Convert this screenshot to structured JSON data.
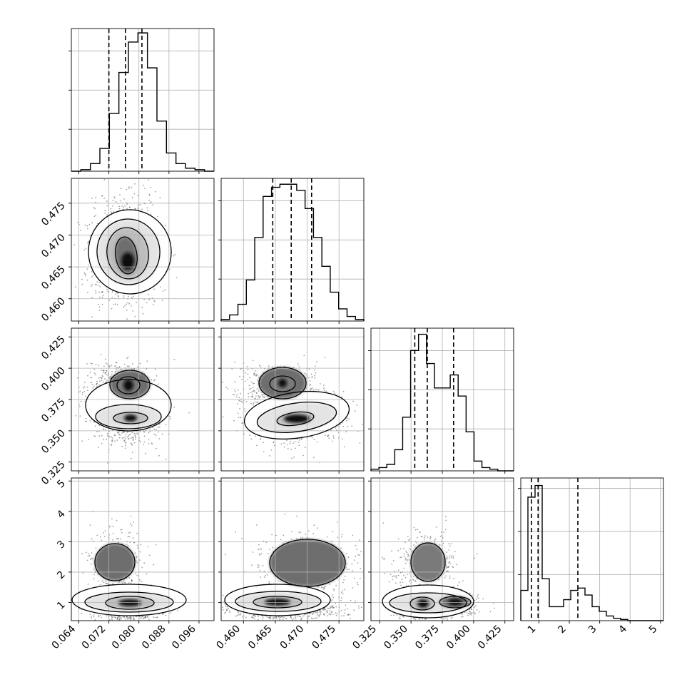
{
  "chart_data": {
    "type": "corner",
    "parameters": [
      {
        "range": [
          0.062,
          0.1
        ],
        "ticks": [
          "0.064",
          "0.072",
          "0.080",
          "0.088",
          "0.096"
        ],
        "tick_values": [
          0.064,
          0.072,
          0.08,
          0.088,
          0.096
        ],
        "quantiles": [
          0.072,
          0.0764,
          0.0808
        ]
      },
      {
        "range": [
          0.4565,
          0.4789
        ],
        "ticks": [
          "0.460",
          "0.465",
          "0.470",
          "0.475"
        ],
        "tick_values": [
          0.46,
          0.465,
          0.47,
          0.475
        ],
        "quantiles": [
          0.4646,
          0.4675,
          0.4707
        ]
      },
      {
        "range": [
          0.318,
          0.432
        ],
        "ticks": [
          "0.325",
          "0.350",
          "0.375",
          "0.400",
          "0.425"
        ],
        "tick_values": [
          0.325,
          0.35,
          0.375,
          0.4,
          0.425
        ],
        "quantiles": [
          0.353,
          0.363,
          0.384
        ]
      },
      {
        "range": [
          0.4,
          5.1
        ],
        "ticks": [
          "1",
          "2",
          "3",
          "4",
          "5"
        ],
        "tick_values": [
          1,
          2,
          3,
          4,
          5
        ],
        "quantiles": [
          0.75,
          0.97,
          2.28
        ]
      }
    ],
    "yticks": [
      null,
      {
        "labels": [
          "0.460",
          "0.465",
          "0.470",
          "0.475"
        ],
        "values": [
          0.46,
          0.465,
          0.47,
          0.475
        ]
      },
      {
        "labels": [
          "0.325",
          "0.350",
          "0.375",
          "0.400",
          "0.425"
        ],
        "values": [
          0.325,
          0.35,
          0.375,
          0.4,
          0.425
        ]
      },
      {
        "labels": [
          "1",
          "2",
          "3",
          "4",
          "5"
        ],
        "values": [
          1,
          2,
          3,
          4,
          5
        ]
      }
    ],
    "histograms": [
      [
        0,
        1,
        5,
        15,
        38,
        65,
        85,
        91,
        68,
        33,
        12,
        5,
        2,
        1,
        0
      ],
      [
        1,
        4,
        11,
        27,
        55,
        82,
        88,
        90,
        90,
        86,
        74,
        55,
        36,
        19,
        8,
        3,
        1
      ],
      [
        1,
        2,
        4,
        13,
        33,
        74,
        84,
        66,
        51,
        51,
        59,
        46,
        24,
        6,
        2,
        1,
        0,
        0
      ],
      [
        13,
        53,
        58,
        18,
        6,
        6,
        9,
        13,
        14,
        11,
        6,
        4,
        2,
        1,
        0.5,
        0,
        0,
        0,
        0,
        0
      ]
    ],
    "grid": true,
    "quantile_lines": "dashed",
    "scatter": "grey points with 1σ/2σ density contours"
  }
}
